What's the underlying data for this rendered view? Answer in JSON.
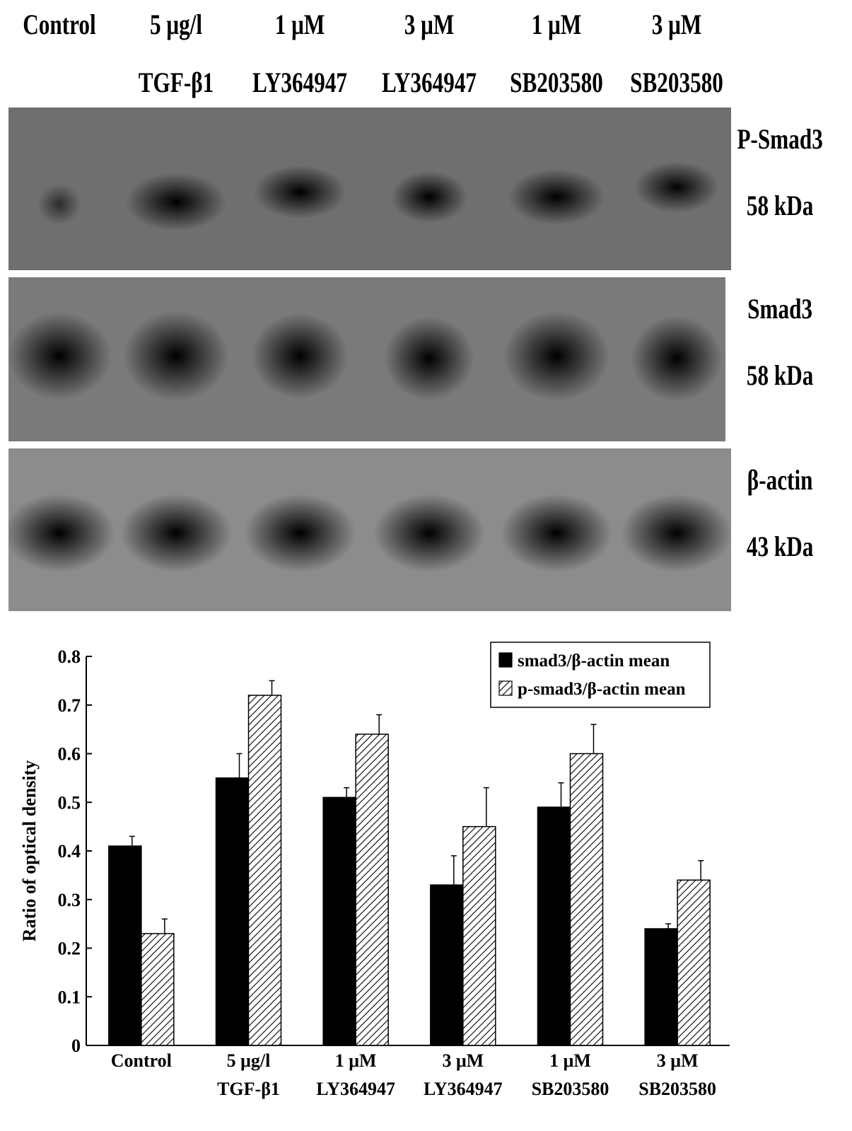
{
  "lanes": [
    {
      "line1": "Control",
      "line2": ""
    },
    {
      "line1": "5 μg/l",
      "line2": "TGF-β1"
    },
    {
      "line1": "1 μM",
      "line2": "LY364947"
    },
    {
      "line1": "3 μM",
      "line2": "LY364947"
    },
    {
      "line1": "1 μM",
      "line2": "SB203580"
    },
    {
      "line1": "3 μM",
      "line2": "SB203580"
    }
  ],
  "blots": [
    {
      "name": "P-Smad3",
      "size": "58 kDa",
      "background": "#6f6f6f",
      "band_intensity": [
        0.35,
        1.0,
        0.8,
        0.75,
        0.9,
        0.72
      ]
    },
    {
      "name": "Smad3",
      "size": "58 kDa",
      "background": "#7a7a7a",
      "band_intensity": [
        0.95,
        1.0,
        0.9,
        0.85,
        1.0,
        0.9
      ]
    },
    {
      "name": "β-actin",
      "size": "43 kDa",
      "background": "#8c8c8c",
      "band_intensity": [
        1.0,
        1.0,
        1.0,
        1.0,
        1.0,
        1.0
      ]
    }
  ],
  "chart_data": {
    "type": "bar",
    "categories": [
      [
        "Control",
        ""
      ],
      [
        "5 μg/l",
        "TGF-β1"
      ],
      [
        "1 μM",
        "LY364947"
      ],
      [
        "3 μM",
        "LY364947"
      ],
      [
        "1 μM",
        "SB203580"
      ],
      [
        "3 μM",
        "SB203580"
      ]
    ],
    "series": [
      {
        "name": "smad3/β-actin mean",
        "fill": "solid",
        "values": [
          0.41,
          0.55,
          0.51,
          0.33,
          0.49,
          0.24
        ],
        "errors": [
          0.02,
          0.05,
          0.02,
          0.06,
          0.05,
          0.01
        ]
      },
      {
        "name": "p-smad3/β-actin mean",
        "fill": "hatched",
        "values": [
          0.23,
          0.72,
          0.64,
          0.45,
          0.6,
          0.34
        ],
        "errors": [
          0.03,
          0.03,
          0.04,
          0.08,
          0.06,
          0.04
        ]
      }
    ],
    "ylabel": "Ratio of optical density",
    "xlabel": "",
    "ylim": [
      0,
      0.8
    ],
    "yticks": [
      "0",
      "0.1",
      "0.2",
      "0.3",
      "0.4",
      "0.5",
      "0.6",
      "0.7",
      "0.8"
    ],
    "legend_position": "top-right",
    "grid": false,
    "colors": {
      "bar": "#000000",
      "hatch": "#000000",
      "axis": "#000000"
    }
  }
}
